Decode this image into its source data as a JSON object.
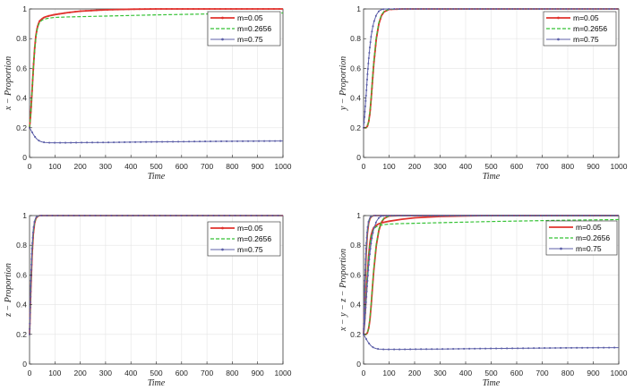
{
  "chart_data": [
    {
      "type": "line",
      "xlabel": "Time",
      "ylabel": "x − Proportion",
      "xlim": [
        0,
        1000
      ],
      "ylim": [
        0,
        1
      ],
      "xticks": [
        "0",
        "100",
        "200",
        "300",
        "400",
        "500",
        "600",
        "700",
        "800",
        "900",
        "1000"
      ],
      "yticks": [
        "0",
        "0.2",
        "0.4",
        "0.6",
        "0.8",
        "1"
      ],
      "grid": true,
      "legend": "top-right",
      "x": [
        0,
        5,
        10,
        15,
        20,
        25,
        30,
        35,
        40,
        50,
        60,
        70,
        80,
        100,
        150,
        200,
        300,
        400,
        500,
        600,
        700,
        800,
        900,
        1000
      ],
      "series": [
        {
          "name": "m=0.05",
          "color": "#e0322d",
          "dashed": false,
          "marker": true,
          "values": [
            0.2,
            0.3,
            0.45,
            0.6,
            0.73,
            0.82,
            0.87,
            0.9,
            0.92,
            0.935,
            0.945,
            0.95,
            0.955,
            0.962,
            0.975,
            0.985,
            0.994,
            0.998,
            1,
            1,
            1,
            1,
            1,
            1
          ]
        },
        {
          "name": "m=0.2656",
          "color": "#35c235",
          "dashed": true,
          "marker": false,
          "values": [
            0.2,
            0.3,
            0.45,
            0.6,
            0.72,
            0.81,
            0.86,
            0.89,
            0.91,
            0.925,
            0.932,
            0.936,
            0.939,
            0.943,
            0.946,
            0.948,
            0.952,
            0.956,
            0.96,
            0.963,
            0.966,
            0.969,
            0.971,
            0.973
          ]
        },
        {
          "name": "m=0.75",
          "color": "#5c5fa8",
          "dashed": false,
          "marker": true,
          "values": [
            0.2,
            0.185,
            0.17,
            0.155,
            0.142,
            0.131,
            0.122,
            0.115,
            0.11,
            0.104,
            0.101,
            0.1,
            0.099,
            0.099,
            0.099,
            0.1,
            0.101,
            0.103,
            0.105,
            0.106,
            0.108,
            0.109,
            0.11,
            0.111
          ]
        }
      ]
    },
    {
      "type": "line",
      "xlabel": "Time",
      "ylabel": "y − Proportion",
      "xlim": [
        0,
        1000
      ],
      "ylim": [
        0,
        1
      ],
      "xticks": [
        "0",
        "100",
        "200",
        "300",
        "400",
        "500",
        "600",
        "700",
        "800",
        "900",
        "1000"
      ],
      "yticks": [
        "0",
        "0.2",
        "0.4",
        "0.6",
        "0.8",
        "1"
      ],
      "grid": true,
      "legend": "top-right",
      "x": [
        0,
        5,
        10,
        15,
        20,
        25,
        30,
        35,
        40,
        50,
        60,
        70,
        80,
        100,
        150,
        200,
        300,
        400,
        500,
        600,
        700,
        800,
        900,
        1000
      ],
      "series": [
        {
          "name": "m=0.05",
          "color": "#e0322d",
          "dashed": false,
          "marker": true,
          "values": [
            0.2,
            0.2,
            0.2,
            0.21,
            0.24,
            0.3,
            0.4,
            0.52,
            0.63,
            0.8,
            0.9,
            0.955,
            0.98,
            0.997,
            1,
            1,
            1,
            1,
            1,
            1,
            1,
            1,
            1,
            1
          ]
        },
        {
          "name": "m=0.2656",
          "color": "#35c235",
          "dashed": true,
          "marker": false,
          "values": [
            0.2,
            0.2,
            0.2,
            0.21,
            0.24,
            0.31,
            0.41,
            0.53,
            0.64,
            0.81,
            0.91,
            0.96,
            0.983,
            0.998,
            1,
            1,
            1,
            1,
            1,
            1,
            1,
            1,
            1,
            1
          ]
        },
        {
          "name": "m=0.75",
          "color": "#5c5fa8",
          "dashed": false,
          "marker": true,
          "values": [
            0.2,
            0.3,
            0.42,
            0.55,
            0.66,
            0.75,
            0.82,
            0.87,
            0.91,
            0.96,
            0.985,
            0.995,
            0.999,
            1,
            1,
            1,
            1,
            1,
            1,
            1,
            1,
            1,
            1,
            1
          ]
        }
      ]
    },
    {
      "type": "line",
      "xlabel": "Time",
      "ylabel": "z − Proportion",
      "xlim": [
        0,
        1000
      ],
      "ylim": [
        0,
        1
      ],
      "xticks": [
        "0",
        "100",
        "200",
        "300",
        "400",
        "500",
        "600",
        "700",
        "800",
        "900",
        "1000"
      ],
      "yticks": [
        "0",
        "0.2",
        "0.4",
        "0.6",
        "0.8",
        "1"
      ],
      "grid": true,
      "legend": "top-right",
      "x": [
        0,
        5,
        10,
        15,
        20,
        25,
        30,
        35,
        40,
        50,
        60,
        70,
        80,
        100,
        150,
        200,
        300,
        400,
        500,
        600,
        700,
        800,
        900,
        1000
      ],
      "series": [
        {
          "name": "m=0.05",
          "color": "#e0322d",
          "dashed": false,
          "marker": true,
          "values": [
            0.2,
            0.5,
            0.74,
            0.88,
            0.95,
            0.98,
            0.992,
            0.997,
            1,
            1,
            1,
            1,
            1,
            1,
            1,
            1,
            1,
            1,
            1,
            1,
            1,
            1,
            1,
            1
          ]
        },
        {
          "name": "m=0.2656",
          "color": "#35c235",
          "dashed": true,
          "marker": false,
          "values": [
            0.2,
            0.52,
            0.76,
            0.89,
            0.955,
            0.982,
            0.993,
            0.998,
            1,
            1,
            1,
            1,
            1,
            1,
            1,
            1,
            1,
            1,
            1,
            1,
            1,
            1,
            1,
            1
          ]
        },
        {
          "name": "m=0.75",
          "color": "#5c5fa8",
          "dashed": false,
          "marker": true,
          "values": [
            0.2,
            0.55,
            0.79,
            0.91,
            0.965,
            0.987,
            0.995,
            0.999,
            1,
            1,
            1,
            1,
            1,
            1,
            1,
            1,
            1,
            1,
            1,
            1,
            1,
            1,
            1,
            1
          ]
        }
      ]
    },
    {
      "type": "line",
      "xlabel": "Time",
      "ylabel": "x − y − z − Proportion",
      "xlim": [
        0,
        1000
      ],
      "ylim": [
        0,
        1
      ],
      "xticks": [
        "0",
        "100",
        "200",
        "300",
        "400",
        "500",
        "600",
        "700",
        "800",
        "900",
        "1000"
      ],
      "yticks": [
        "0",
        "0.2",
        "0.4",
        "0.6",
        "0.8",
        "1"
      ],
      "grid": true,
      "legend": "top-right",
      "x": [
        0,
        5,
        10,
        15,
        20,
        25,
        30,
        35,
        40,
        50,
        60,
        70,
        80,
        100,
        150,
        200,
        300,
        400,
        500,
        600,
        700,
        800,
        900,
        1000
      ],
      "series": [
        {
          "name": "m=0.05",
          "color": "#e0322d",
          "dashed": false,
          "marker": false,
          "values": [
            [
              0.2,
              0.3,
              0.45,
              0.6,
              0.73,
              0.82,
              0.87,
              0.9,
              0.92,
              0.935,
              0.945,
              0.95,
              0.955,
              0.962,
              0.975,
              0.985,
              0.994,
              0.998,
              1,
              1,
              1,
              1,
              1,
              1
            ],
            [
              0.2,
              0.2,
              0.2,
              0.21,
              0.24,
              0.3,
              0.4,
              0.52,
              0.63,
              0.8,
              0.9,
              0.955,
              0.98,
              0.997,
              1,
              1,
              1,
              1,
              1,
              1,
              1,
              1,
              1,
              1
            ],
            [
              0.2,
              0.5,
              0.74,
              0.88,
              0.95,
              0.98,
              0.992,
              0.997,
              1,
              1,
              1,
              1,
              1,
              1,
              1,
              1,
              1,
              1,
              1,
              1,
              1,
              1,
              1,
              1
            ]
          ]
        },
        {
          "name": "m=0.2656",
          "color": "#35c235",
          "dashed": true,
          "marker": false,
          "values": [
            [
              0.2,
              0.3,
              0.45,
              0.6,
              0.72,
              0.81,
              0.86,
              0.89,
              0.91,
              0.925,
              0.932,
              0.936,
              0.939,
              0.943,
              0.946,
              0.948,
              0.952,
              0.956,
              0.96,
              0.963,
              0.966,
              0.969,
              0.971,
              0.973
            ],
            [
              0.2,
              0.2,
              0.2,
              0.21,
              0.24,
              0.31,
              0.41,
              0.53,
              0.64,
              0.81,
              0.91,
              0.96,
              0.983,
              0.998,
              1,
              1,
              1,
              1,
              1,
              1,
              1,
              1,
              1,
              1
            ],
            [
              0.2,
              0.52,
              0.76,
              0.89,
              0.955,
              0.982,
              0.993,
              0.998,
              1,
              1,
              1,
              1,
              1,
              1,
              1,
              1,
              1,
              1,
              1,
              1,
              1,
              1,
              1,
              1
            ]
          ]
        },
        {
          "name": "m=0.75",
          "color": "#5c5fa8",
          "dashed": false,
          "marker": true,
          "values": [
            [
              0.2,
              0.185,
              0.17,
              0.155,
              0.142,
              0.131,
              0.122,
              0.115,
              0.11,
              0.104,
              0.101,
              0.1,
              0.099,
              0.099,
              0.099,
              0.1,
              0.101,
              0.103,
              0.105,
              0.106,
              0.108,
              0.109,
              0.11,
              0.111
            ],
            [
              0.2,
              0.3,
              0.42,
              0.55,
              0.66,
              0.75,
              0.82,
              0.87,
              0.91,
              0.96,
              0.985,
              0.995,
              0.999,
              1,
              1,
              1,
              1,
              1,
              1,
              1,
              1,
              1,
              1,
              1
            ],
            [
              0.2,
              0.55,
              0.79,
              0.91,
              0.965,
              0.987,
              0.995,
              0.999,
              1,
              1,
              1,
              1,
              1,
              1,
              1,
              1,
              1,
              1,
              1,
              1,
              1,
              1,
              1,
              1
            ]
          ]
        }
      ]
    }
  ]
}
